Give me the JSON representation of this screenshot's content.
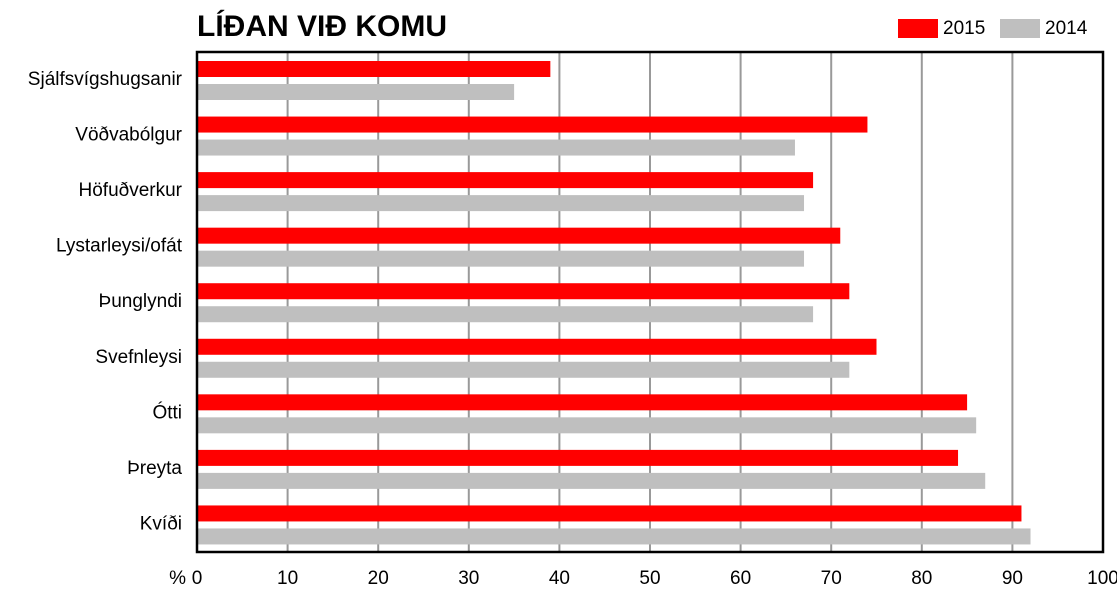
{
  "chart_data": {
    "type": "hbar",
    "title": "LÍÐAN VIÐ KOMU",
    "xlabel": "%",
    "categories": [
      "Sjálfsvígshugsanir",
      "Vöðvabólgur",
      "Höfuðverkur",
      "Lystarleysi/ofát",
      "Þunglyndi",
      "Svefnleysi",
      "Ótti",
      "Þreyta",
      "Kvíði"
    ],
    "series": [
      {
        "name": "2015",
        "color": "#ff0000",
        "values": [
          39,
          74,
          68,
          71,
          72,
          75,
          85,
          84,
          91
        ]
      },
      {
        "name": "2014",
        "color": "#bfbfbf",
        "values": [
          35,
          66,
          67,
          67,
          68,
          72,
          86,
          87,
          92
        ]
      }
    ],
    "xlim": [
      0,
      100
    ],
    "xticks": [
      0,
      10,
      20,
      30,
      40,
      50,
      60,
      70,
      80,
      90,
      100
    ],
    "grid": true,
    "legend": "top-right"
  }
}
